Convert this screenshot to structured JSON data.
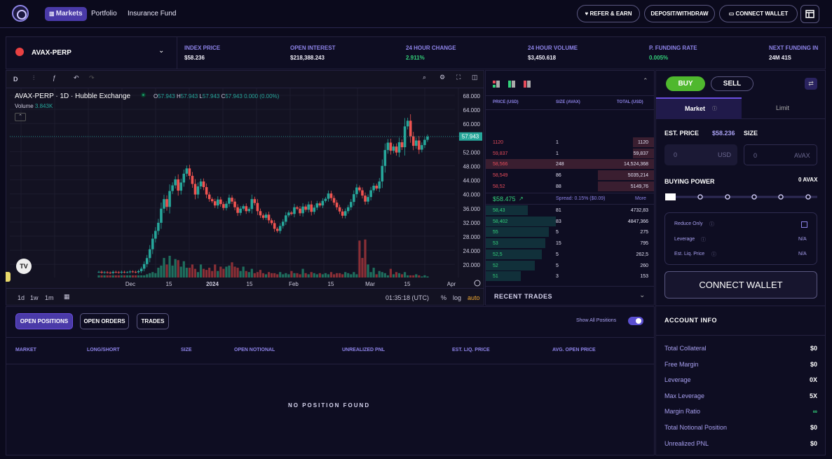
{
  "nav": {
    "markets": "Markets",
    "portfolio": "Portfolio",
    "insurance": "Insurance Fund",
    "refer": "REFER & EARN",
    "deposit": "DEPOSIT/WITHDRAW",
    "connect": "CONNECT WALLET"
  },
  "market": {
    "symbol": "AVAX-PERP",
    "stats": [
      {
        "label": "INDEX PRICE",
        "value": "$58.236"
      },
      {
        "label": "OPEN INTEREST",
        "value": "$218,388.243"
      },
      {
        "label": "24 HOUR CHANGE",
        "value": "2.911%"
      },
      {
        "label": "24 HOUR VOLUME",
        "value": "$3,450.618"
      },
      {
        "label": "P. FUNDING RATE",
        "value": "0.005%"
      },
      {
        "label": "NEXT FUNDING IN",
        "value": "24M 41S"
      }
    ]
  },
  "chart": {
    "interval_label": "D",
    "title": "AVAX-PERP · 1D · Hubble Exchange",
    "ohlc": {
      "o_label": "O",
      "o": "57.943",
      "h_label": "H",
      "h": "57.943",
      "l_label": "L",
      "l": "57.943",
      "c_label": "C",
      "c": "57.943",
      "chg": "0.000 (0.00%)"
    },
    "volume_label": "Volume",
    "volume": "3.843K",
    "last_price": "57.943",
    "ranges": [
      "1d",
      "1w",
      "1m"
    ],
    "time": "01:35:18 (UTC)",
    "pct": "%",
    "log": "log",
    "auto": "auto",
    "y_ticks": [
      "68.000",
      "64.000",
      "60.000",
      "56.000",
      "52.000",
      "48.000",
      "44.000",
      "40.000",
      "36.000",
      "32.000",
      "28.000",
      "24.000",
      "20.000"
    ],
    "x_ticks": [
      "Dec",
      "15",
      "2024",
      "15",
      "Feb",
      "15",
      "Mar",
      "15",
      "Apr"
    ]
  },
  "chart_data": {
    "type": "candlestick",
    "title": "AVAX-PERP · 1D · Hubble Exchange",
    "ylim": [
      18,
      70
    ],
    "closes": [
      19.6,
      19.4,
      19.5,
      19.4,
      19.3,
      19.6,
      19.5,
      19.4,
      19.6,
      19.5,
      19.5,
      19.7,
      19.6,
      19.5,
      19.8,
      20.5,
      21.8,
      23.5,
      26.0,
      29.0,
      31.2,
      33.5,
      37.5,
      40.2,
      38.0,
      42.5,
      44.1,
      45.8,
      42.6,
      44.9,
      47.4,
      48.9,
      46.8,
      44.5,
      41.5,
      43.8,
      45.2,
      43.6,
      41.5,
      40.2,
      39.6,
      38.4,
      40.1,
      38.8,
      37.7,
      38.9,
      40.6,
      39.5,
      37.9,
      36.3,
      37.5,
      38.2,
      36.8,
      37.4,
      40.2,
      39.1,
      36.8,
      35.6,
      34.9,
      35.8,
      34.2,
      33.4,
      31.8,
      31.2,
      32.6,
      33.8,
      35.6,
      36.4,
      36.0,
      37.9,
      37.5,
      36.2,
      38.1,
      37.2,
      38.7,
      36.6,
      37.8,
      39.0,
      38.4,
      39.7,
      40.3,
      41.8,
      40.5,
      39.2,
      37.9,
      36.7,
      35.5,
      36.8,
      37.9,
      39.4,
      41.6,
      43.5,
      42.7,
      41.2,
      39.5,
      40.8,
      42.7,
      44.0,
      43.2,
      45.2,
      49.6,
      54.1,
      56.2,
      53.9,
      55.1,
      53.4,
      56.3,
      54.9,
      60.8,
      62.4,
      58.0,
      55.3,
      56.8,
      54.2,
      55.5,
      57.0,
      57.9
    ],
    "volumes": [
      2,
      2,
      2,
      2,
      2,
      2,
      2,
      2,
      2,
      2,
      2,
      2,
      2,
      2,
      2,
      2,
      2,
      3,
      4,
      5,
      4,
      9,
      11,
      18,
      12,
      20,
      11,
      17,
      16,
      10,
      15,
      9,
      9,
      12,
      8,
      5,
      12,
      8,
      7,
      9,
      6,
      12,
      6,
      10,
      8,
      10,
      11,
      14,
      10,
      9,
      6,
      10,
      6,
      5,
      8,
      4,
      5,
      7,
      4,
      3,
      5,
      4,
      4,
      3,
      5,
      3,
      4,
      3,
      6,
      4,
      4,
      3,
      8,
      4,
      3,
      5,
      4,
      3,
      4,
      3,
      4,
      3,
      5,
      3,
      4,
      4,
      3,
      5,
      4,
      3,
      5,
      3,
      34,
      18,
      35,
      12,
      5,
      9,
      3,
      6,
      5,
      4,
      2,
      8,
      3,
      5,
      4,
      3,
      5,
      2,
      2,
      2,
      3,
      2,
      1,
      2,
      1,
      1,
      1,
      1,
      1
    ]
  },
  "orderbook": {
    "headers": [
      "PRICE (USD)",
      "SIZE (AVAX)",
      "TOTAL (USD)"
    ],
    "asks": [
      [
        "1120",
        "1",
        "1120"
      ],
      [
        "59,837",
        "1",
        "59,837"
      ],
      [
        "58,566",
        "248",
        "14,524,368"
      ],
      [
        "58,549",
        "86",
        "5035,214"
      ],
      [
        "58,52",
        "88",
        "5149,76"
      ]
    ],
    "mid_price": "$58.475",
    "spread": "Spread: 0.15% ($0.09)",
    "more": "More",
    "bids": [
      [
        "58,43",
        "81",
        "4732,83"
      ],
      [
        "58,402",
        "83",
        "4847,366"
      ],
      [
        "55",
        "5",
        "275"
      ],
      [
        "53",
        "15",
        "795"
      ],
      [
        "52,5",
        "5",
        "262,5"
      ],
      [
        "52",
        "5",
        "260"
      ],
      [
        "51",
        "3",
        "153"
      ]
    ],
    "recent_trades": "RECENT TRADES"
  },
  "trade": {
    "buy": "BUY",
    "sell": "SELL",
    "market_tab": "Market",
    "limit_tab": "Limit",
    "est_price_label": "EST. PRICE",
    "est_price": "$58.236",
    "size_label": "SIZE",
    "usd_value": "0",
    "usd_unit": "USD",
    "avax_value": "0",
    "avax_unit": "AVAX",
    "buying_power_label": "BUYING POWER",
    "buying_power": "0 AVAX",
    "reduce_only": "Reduce Only",
    "leverage": "Leverage",
    "leverage_val": "N/A",
    "est_liq": "Est. Liq. Price",
    "est_liq_val": "N/A",
    "connect": "CONNECT WALLET"
  },
  "account": {
    "title": "ACCOUNT INFO",
    "rows": [
      {
        "label": "Total Collateral",
        "value": "$0"
      },
      {
        "label": "Free Margin",
        "value": "$0"
      },
      {
        "label": "Leverage",
        "value": "0X"
      },
      {
        "label": "Max Leverage",
        "value": "5X"
      },
      {
        "label": "Margin Ratio",
        "value": "∞"
      },
      {
        "label": "Total Notional Position",
        "value": "$0"
      },
      {
        "label": "Unrealized PNL",
        "value": "$0"
      }
    ]
  },
  "positions": {
    "tabs": [
      "OPEN POSITIONS",
      "OPEN ORDERS",
      "TRADES"
    ],
    "show_all": "Show All Positions",
    "columns": [
      "MARKET",
      "LONG/SHORT",
      "SIZE",
      "OPEN NOTIONAL",
      "UNREALIZED PNL",
      "EST. LIQ. PRICE",
      "AVG. OPEN PRICE"
    ],
    "empty": "NO POSITION FOUND"
  }
}
